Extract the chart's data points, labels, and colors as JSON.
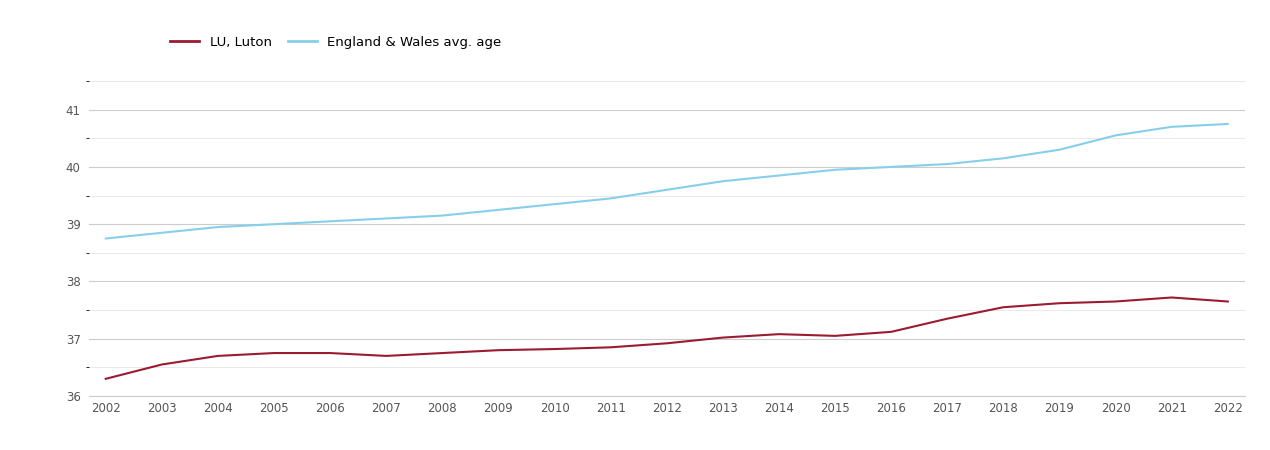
{
  "years": [
    2002,
    2003,
    2004,
    2005,
    2006,
    2007,
    2008,
    2009,
    2010,
    2011,
    2012,
    2013,
    2014,
    2015,
    2016,
    2017,
    2018,
    2019,
    2020,
    2021,
    2022
  ],
  "luton": [
    36.3,
    36.55,
    36.7,
    36.75,
    36.75,
    36.7,
    36.75,
    36.8,
    36.82,
    36.85,
    36.92,
    37.02,
    37.08,
    37.05,
    37.12,
    37.35,
    37.55,
    37.62,
    37.65,
    37.72,
    37.65
  ],
  "england_wales": [
    38.75,
    38.85,
    38.95,
    39.0,
    39.05,
    39.1,
    39.15,
    39.25,
    39.35,
    39.45,
    39.6,
    39.75,
    39.85,
    39.95,
    40.0,
    40.05,
    40.15,
    40.3,
    40.55,
    40.7,
    40.75
  ],
  "luton_color": "#9B1B30",
  "ew_color": "#87CEEB",
  "background_color": "#ffffff",
  "ylim": [
    36,
    41.5
  ],
  "yticks": [
    36,
    37,
    38,
    39,
    40,
    41
  ],
  "legend_luton": "LU, Luton",
  "legend_ew": "England & Wales avg. age",
  "linewidth": 1.5
}
